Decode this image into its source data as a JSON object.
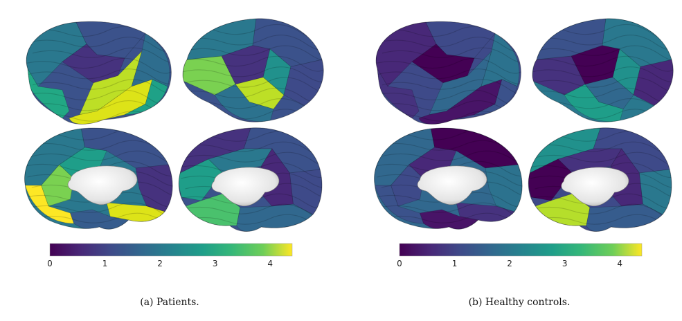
{
  "panels": [
    {
      "id": "a",
      "caption": "(a)  Patients.",
      "colorbar": {
        "ticks": [
          "0",
          "1",
          "2",
          "3",
          "4"
        ],
        "min": 0,
        "max": 4.4
      },
      "regions": {
        "lat_left": [
          "#2a788e",
          "#3b528b",
          "#22a884",
          "#46327e",
          "#bddf26",
          "#dde318",
          "#2e6d8e",
          "#1fa187"
        ],
        "lat_right": [
          "#2a788e",
          "#3b528b",
          "#46327e",
          "#21918c",
          "#7ad151",
          "#bddf26",
          "#3e4a89",
          "#2c728e"
        ],
        "med_left": [
          "#3b528b",
          "#2a788e",
          "#7ad151",
          "#1f9e89",
          "#46327e",
          "#dde318",
          "#fde725",
          "#365c8d"
        ],
        "med_right": [
          "#46327e",
          "#3b528b",
          "#2a788e",
          "#1f9e89",
          "#3e4a89",
          "#4ac16d",
          "#31688e",
          "#482878"
        ]
      }
    },
    {
      "id": "b",
      "caption": "(b)  Healthy controls.",
      "colorbar": {
        "ticks": [
          "0",
          "1",
          "2",
          "3",
          "4"
        ],
        "min": 0,
        "max": 4.4
      },
      "regions": {
        "lat_left": [
          "#482878",
          "#3e4a89",
          "#46327e",
          "#440154",
          "#31688e",
          "#481467",
          "#2c728e",
          "#3b528b"
        ],
        "lat_right": [
          "#3b528b",
          "#2a788e",
          "#440154",
          "#21918c",
          "#46327e",
          "#31688e",
          "#482878",
          "#1f9e89"
        ],
        "med_left": [
          "#440154",
          "#31688e",
          "#3e4a89",
          "#482878",
          "#2c728e",
          "#46327e",
          "#3b528b",
          "#481467"
        ],
        "med_right": [
          "#21918c",
          "#3e4a89",
          "#46327e",
          "#440154",
          "#2a788e",
          "#b5de2b",
          "#365c8d",
          "#482878"
        ]
      }
    }
  ],
  "colormap": "viridis",
  "brain_core_color": "#e8e8e8"
}
